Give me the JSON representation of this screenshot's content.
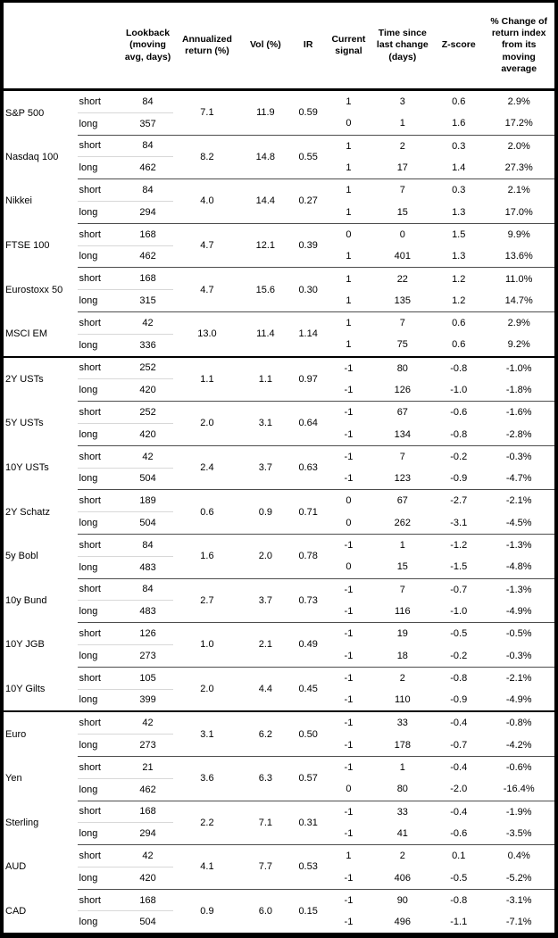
{
  "table": {
    "columns": [
      {
        "id": "asset",
        "label": ""
      },
      {
        "id": "period",
        "label": ""
      },
      {
        "id": "lookback",
        "label": "Lookback (moving avg, days)"
      },
      {
        "id": "annualized-return",
        "label": "Annualized return (%)"
      },
      {
        "id": "vol",
        "label": "Vol (%)"
      },
      {
        "id": "ir",
        "label": "IR"
      },
      {
        "id": "current-signal",
        "label": "Current signal"
      },
      {
        "id": "time-since",
        "label": "Time since last change (days)"
      },
      {
        "id": "zscore",
        "label": "Z-score"
      },
      {
        "id": "pct-change",
        "label": "% Change of return index from its moving average"
      }
    ],
    "sections": [
      {
        "assets": [
          {
            "name": "S&P 500",
            "annualized_return": "7.1",
            "vol": "11.9",
            "ir": "0.59",
            "rows": [
              {
                "period": "short",
                "lookback": "84",
                "signal": "1",
                "time_since": "3",
                "zscore": "0.6",
                "pct_change": "2.9%"
              },
              {
                "period": "long",
                "lookback": "357",
                "signal": "0",
                "time_since": "1",
                "zscore": "1.6",
                "pct_change": "17.2%"
              }
            ]
          },
          {
            "name": "Nasdaq 100",
            "annualized_return": "8.2",
            "vol": "14.8",
            "ir": "0.55",
            "rows": [
              {
                "period": "short",
                "lookback": "84",
                "signal": "1",
                "time_since": "2",
                "zscore": "0.3",
                "pct_change": "2.0%"
              },
              {
                "period": "long",
                "lookback": "462",
                "signal": "1",
                "time_since": "17",
                "zscore": "1.4",
                "pct_change": "27.3%"
              }
            ]
          },
          {
            "name": "Nikkei",
            "annualized_return": "4.0",
            "vol": "14.4",
            "ir": "0.27",
            "rows": [
              {
                "period": "short",
                "lookback": "84",
                "signal": "1",
                "time_since": "7",
                "zscore": "0.3",
                "pct_change": "2.1%"
              },
              {
                "period": "long",
                "lookback": "294",
                "signal": "1",
                "time_since": "15",
                "zscore": "1.3",
                "pct_change": "17.0%"
              }
            ]
          },
          {
            "name": "FTSE 100",
            "annualized_return": "4.7",
            "vol": "12.1",
            "ir": "0.39",
            "rows": [
              {
                "period": "short",
                "lookback": "168",
                "signal": "0",
                "time_since": "0",
                "zscore": "1.5",
                "pct_change": "9.9%"
              },
              {
                "period": "long",
                "lookback": "462",
                "signal": "1",
                "time_since": "401",
                "zscore": "1.3",
                "pct_change": "13.6%"
              }
            ]
          },
          {
            "name": "Eurostoxx 50",
            "annualized_return": "4.7",
            "vol": "15.6",
            "ir": "0.30",
            "rows": [
              {
                "period": "short",
                "lookback": "168",
                "signal": "1",
                "time_since": "22",
                "zscore": "1.2",
                "pct_change": "11.0%"
              },
              {
                "period": "long",
                "lookback": "315",
                "signal": "1",
                "time_since": "135",
                "zscore": "1.2",
                "pct_change": "14.7%"
              }
            ]
          },
          {
            "name": "MSCI EM",
            "annualized_return": "13.0",
            "vol": "11.4",
            "ir": "1.14",
            "rows": [
              {
                "period": "short",
                "lookback": "42",
                "signal": "1",
                "time_since": "7",
                "zscore": "0.6",
                "pct_change": "2.9%"
              },
              {
                "period": "long",
                "lookback": "336",
                "signal": "1",
                "time_since": "75",
                "zscore": "0.6",
                "pct_change": "9.2%"
              }
            ]
          }
        ]
      },
      {
        "assets": [
          {
            "name": "2Y USTs",
            "annualized_return": "1.1",
            "vol": "1.1",
            "ir": "0.97",
            "rows": [
              {
                "period": "short",
                "lookback": "252",
                "signal": "-1",
                "time_since": "80",
                "zscore": "-0.8",
                "pct_change": "-1.0%"
              },
              {
                "period": "long",
                "lookback": "420",
                "signal": "-1",
                "time_since": "126",
                "zscore": "-1.0",
                "pct_change": "-1.8%"
              }
            ]
          },
          {
            "name": "5Y USTs",
            "annualized_return": "2.0",
            "vol": "3.1",
            "ir": "0.64",
            "rows": [
              {
                "period": "short",
                "lookback": "252",
                "signal": "-1",
                "time_since": "67",
                "zscore": "-0.6",
                "pct_change": "-1.6%"
              },
              {
                "period": "long",
                "lookback": "420",
                "signal": "-1",
                "time_since": "134",
                "zscore": "-0.8",
                "pct_change": "-2.8%"
              }
            ]
          },
          {
            "name": "10Y USTs",
            "annualized_return": "2.4",
            "vol": "3.7",
            "ir": "0.63",
            "rows": [
              {
                "period": "short",
                "lookback": "42",
                "signal": "-1",
                "time_since": "7",
                "zscore": "-0.2",
                "pct_change": "-0.3%"
              },
              {
                "period": "long",
                "lookback": "504",
                "signal": "-1",
                "time_since": "123",
                "zscore": "-0.9",
                "pct_change": "-4.7%"
              }
            ]
          },
          {
            "name": "2Y Schatz",
            "annualized_return": "0.6",
            "vol": "0.9",
            "ir": "0.71",
            "rows": [
              {
                "period": "short",
                "lookback": "189",
                "signal": "0",
                "time_since": "67",
                "zscore": "-2.7",
                "pct_change": "-2.1%"
              },
              {
                "period": "long",
                "lookback": "504",
                "signal": "0",
                "time_since": "262",
                "zscore": "-3.1",
                "pct_change": "-4.5%"
              }
            ]
          },
          {
            "name": "5y Bobl",
            "annualized_return": "1.6",
            "vol": "2.0",
            "ir": "0.78",
            "rows": [
              {
                "period": "short",
                "lookback": "84",
                "signal": "-1",
                "time_since": "1",
                "zscore": "-1.2",
                "pct_change": "-1.3%"
              },
              {
                "period": "long",
                "lookback": "483",
                "signal": "0",
                "time_since": "15",
                "zscore": "-1.5",
                "pct_change": "-4.8%"
              }
            ]
          },
          {
            "name": "10y Bund",
            "annualized_return": "2.7",
            "vol": "3.7",
            "ir": "0.73",
            "rows": [
              {
                "period": "short",
                "lookback": "84",
                "signal": "-1",
                "time_since": "7",
                "zscore": "-0.7",
                "pct_change": "-1.3%"
              },
              {
                "period": "long",
                "lookback": "483",
                "signal": "-1",
                "time_since": "116",
                "zscore": "-1.0",
                "pct_change": "-4.9%"
              }
            ]
          },
          {
            "name": "10Y JGB",
            "annualized_return": "1.0",
            "vol": "2.1",
            "ir": "0.49",
            "rows": [
              {
                "period": "short",
                "lookback": "126",
                "signal": "-1",
                "time_since": "19",
                "zscore": "-0.5",
                "pct_change": "-0.5%"
              },
              {
                "period": "long",
                "lookback": "273",
                "signal": "-1",
                "time_since": "18",
                "zscore": "-0.2",
                "pct_change": "-0.3%"
              }
            ]
          },
          {
            "name": "10Y Gilts",
            "annualized_return": "2.0",
            "vol": "4.4",
            "ir": "0.45",
            "rows": [
              {
                "period": "short",
                "lookback": "105",
                "signal": "-1",
                "time_since": "2",
                "zscore": "-0.8",
                "pct_change": "-2.1%"
              },
              {
                "period": "long",
                "lookback": "399",
                "signal": "-1",
                "time_since": "110",
                "zscore": "-0.9",
                "pct_change": "-4.9%"
              }
            ]
          }
        ]
      },
      {
        "assets": [
          {
            "name": "Euro",
            "annualized_return": "3.1",
            "vol": "6.2",
            "ir": "0.50",
            "rows": [
              {
                "period": "short",
                "lookback": "42",
                "signal": "-1",
                "time_since": "33",
                "zscore": "-0.4",
                "pct_change": "-0.8%"
              },
              {
                "period": "long",
                "lookback": "273",
                "signal": "-1",
                "time_since": "178",
                "zscore": "-0.7",
                "pct_change": "-4.2%"
              }
            ]
          },
          {
            "name": "Yen",
            "annualized_return": "3.6",
            "vol": "6.3",
            "ir": "0.57",
            "rows": [
              {
                "period": "short",
                "lookback": "21",
                "signal": "-1",
                "time_since": "1",
                "zscore": "-0.4",
                "pct_change": "-0.6%"
              },
              {
                "period": "long",
                "lookback": "462",
                "signal": "0",
                "time_since": "80",
                "zscore": "-2.0",
                "pct_change": "-16.4%"
              }
            ]
          },
          {
            "name": "Sterling",
            "annualized_return": "2.2",
            "vol": "7.1",
            "ir": "0.31",
            "rows": [
              {
                "period": "short",
                "lookback": "168",
                "signal": "-1",
                "time_since": "33",
                "zscore": "-0.4",
                "pct_change": "-1.9%"
              },
              {
                "period": "long",
                "lookback": "294",
                "signal": "-1",
                "time_since": "41",
                "zscore": "-0.6",
                "pct_change": "-3.5%"
              }
            ]
          },
          {
            "name": "AUD",
            "annualized_return": "4.1",
            "vol": "7.7",
            "ir": "0.53",
            "rows": [
              {
                "period": "short",
                "lookback": "42",
                "signal": "1",
                "time_since": "2",
                "zscore": "0.1",
                "pct_change": "0.4%"
              },
              {
                "period": "long",
                "lookback": "420",
                "signal": "-1",
                "time_since": "406",
                "zscore": "-0.5",
                "pct_change": "-5.2%"
              }
            ]
          },
          {
            "name": "CAD",
            "annualized_return": "0.9",
            "vol": "6.0",
            "ir": "0.15",
            "rows": [
              {
                "period": "short",
                "lookback": "168",
                "signal": "-1",
                "time_since": "90",
                "zscore": "-0.8",
                "pct_change": "-3.1%"
              },
              {
                "period": "long",
                "lookback": "504",
                "signal": "-1",
                "time_since": "496",
                "zscore": "-1.1",
                "pct_change": "-7.1%"
              }
            ]
          }
        ]
      }
    ]
  }
}
